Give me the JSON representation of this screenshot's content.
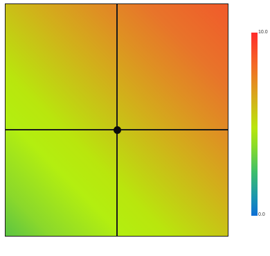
{
  "colorbar": {
    "max_label": "10.0",
    "min_label": "0.0",
    "colors": [
      "#ff2b2b",
      "#f36a25",
      "#d9a61c",
      "#b9e60d",
      "#8adb2a",
      "#3fbf6a",
      "#1b95b0",
      "#0d6fd6"
    ]
  },
  "field": {
    "description_colors": [
      "#5cc443",
      "#b3ee10",
      "#d3ad1b",
      "#f15a2b"
    ]
  },
  "marker": {
    "color": "#0b0b0b"
  }
}
